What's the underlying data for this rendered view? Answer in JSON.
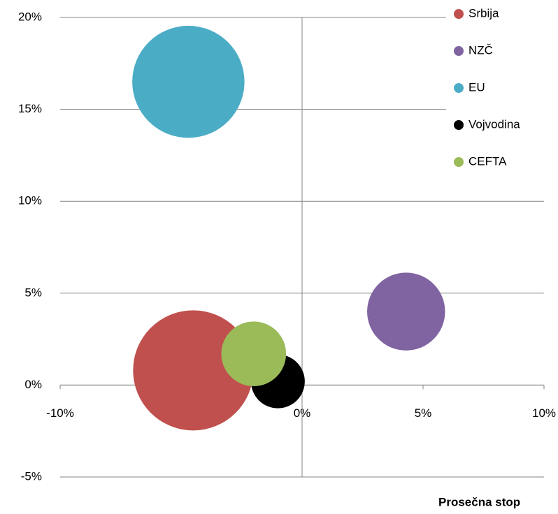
{
  "chart_data": {
    "type": "bubble",
    "x_label": "Prosečna stop",
    "xlim": [
      -10,
      10
    ],
    "xticks": [
      {
        "value": -10,
        "label": "-10%"
      },
      {
        "value": -5,
        "label": "-5%"
      },
      {
        "value": 0,
        "label": "0%"
      },
      {
        "value": 5,
        "label": "5%"
      },
      {
        "value": 10,
        "label": "10%"
      }
    ],
    "ylim": [
      -5,
      20
    ],
    "yticks": [
      {
        "value": -5,
        "label": "-5%"
      },
      {
        "value": 0,
        "label": "0%"
      },
      {
        "value": 5,
        "label": "5%"
      },
      {
        "value": 10,
        "label": "10%"
      },
      {
        "value": 15,
        "label": "15%"
      },
      {
        "value": 20,
        "label": "20%"
      }
    ],
    "grid": true,
    "legend": "top-right",
    "series": [
      {
        "name": "Srbija",
        "color": "#c0504d",
        "x": [
          -4.5
        ],
        "values": [
          0.8
        ],
        "sizes": [
          100
        ]
      },
      {
        "name": "NZČ",
        "color": "#8064a2",
        "x": [
          4.3
        ],
        "values": [
          4.0
        ],
        "sizes": [
          42
        ]
      },
      {
        "name": "EU",
        "color": "#4bacc6",
        "x": [
          -4.7
        ],
        "values": [
          16.5
        ],
        "sizes": [
          87
        ]
      },
      {
        "name": "Vojvodina",
        "color": "#000000",
        "x": [
          -1.0
        ],
        "values": [
          0.2
        ],
        "sizes": [
          20
        ]
      },
      {
        "name": "CEFTA",
        "color": "#9bbb59",
        "x": [
          -2.0
        ],
        "values": [
          1.7
        ],
        "sizes": [
          29
        ]
      }
    ]
  }
}
